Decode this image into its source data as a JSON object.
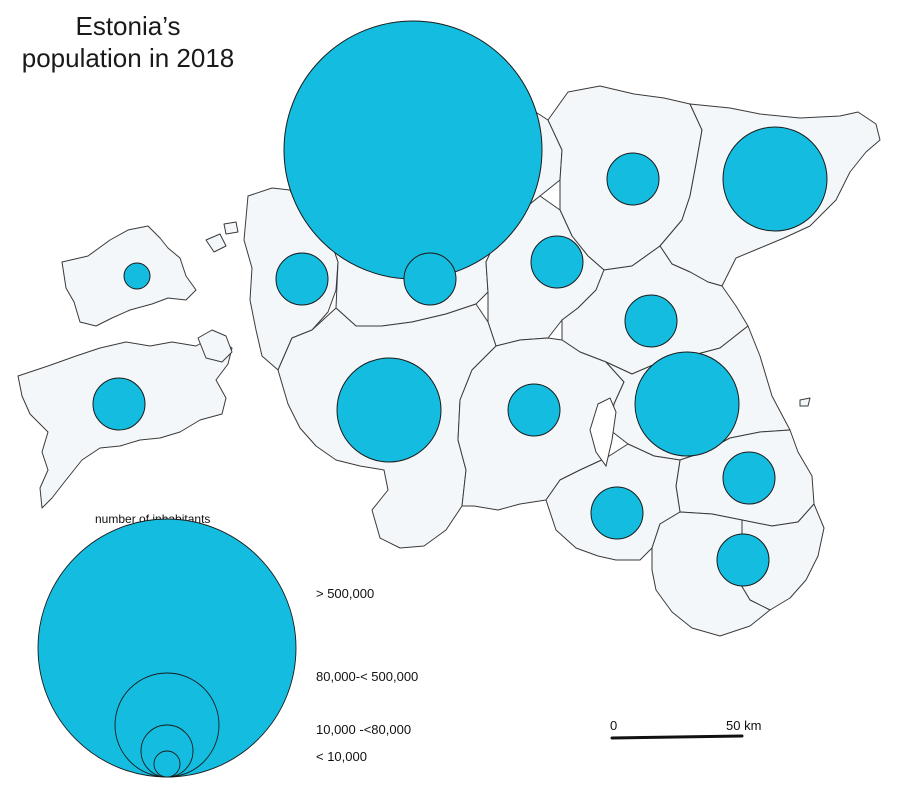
{
  "title": {
    "line1": "Estonia’s",
    "line2": "population in 2018"
  },
  "colors": {
    "bubble": "#14bde0",
    "land": "#f4f7fa",
    "border": "#3a3a3a"
  },
  "legend": {
    "heading": "number of inhabitants",
    "classes": [
      {
        "label": "> 500,000"
      },
      {
        "label": "80,000-< 500,000"
      },
      {
        "label": "10,000 -<80,000"
      },
      {
        "label": "< 10,000"
      }
    ]
  },
  "scale_bar": {
    "start_label": "0",
    "end_label": "50 km"
  }
}
